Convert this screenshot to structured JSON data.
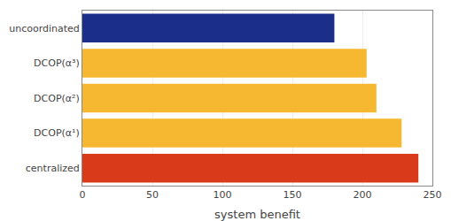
{
  "chart_data": {
    "type": "bar",
    "orientation": "horizontal",
    "categories": [
      "uncoordinated",
      "DCOP(α³)",
      "DCOP(α²)",
      "DCOP(α¹)",
      "centralized"
    ],
    "values": [
      180,
      203,
      210,
      228,
      240
    ],
    "colors": [
      "#1a2e8a",
      "#f5b830",
      "#f5b830",
      "#f5b830",
      "#d93a1a"
    ],
    "xlabel": "system benefit",
    "xlim": [
      0,
      250
    ],
    "xticks": [
      0,
      50,
      100,
      150,
      200,
      250
    ],
    "grid": true
  }
}
